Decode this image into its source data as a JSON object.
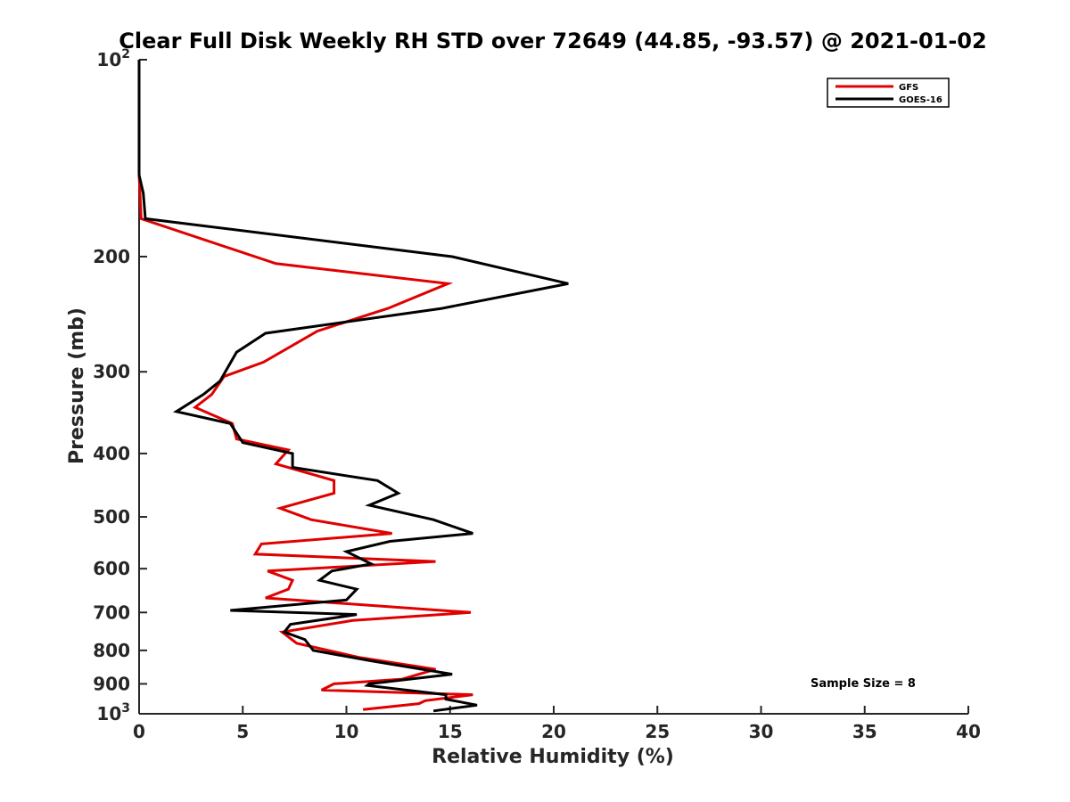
{
  "chart_data": {
    "type": "line",
    "title": "Clear Full Disk Weekly RH STD over 72649 (44.85, -93.57) @ 2021-01-02",
    "xlabel": "Relative Humidity (%)",
    "ylabel": "Pressure (mb)",
    "xlim": [
      0,
      40
    ],
    "ylim": [
      100,
      1000
    ],
    "y_scale": "log",
    "y_reversed": true,
    "grid": false,
    "legend_position": "top-right",
    "x_ticks": [
      {
        "value": 0,
        "label": "0"
      },
      {
        "value": 5,
        "label": "5"
      },
      {
        "value": 10,
        "label": "10"
      },
      {
        "value": 15,
        "label": "15"
      },
      {
        "value": 20,
        "label": "20"
      },
      {
        "value": 25,
        "label": "25"
      },
      {
        "value": 30,
        "label": "30"
      },
      {
        "value": 35,
        "label": "35"
      },
      {
        "value": 40,
        "label": "40"
      }
    ],
    "y_ticks": [
      {
        "value": 100,
        "base": "10",
        "exp": "2"
      },
      {
        "value": 200,
        "label": "200"
      },
      {
        "value": 300,
        "label": "300"
      },
      {
        "value": 400,
        "label": "400"
      },
      {
        "value": 500,
        "label": "500"
      },
      {
        "value": 600,
        "label": "600"
      },
      {
        "value": 700,
        "label": "700"
      },
      {
        "value": 800,
        "label": "800"
      },
      {
        "value": 900,
        "label": "900"
      },
      {
        "value": 1000,
        "base": "10",
        "exp": "3"
      }
    ],
    "series": [
      {
        "name": "GFS",
        "color": "#e00000",
        "points": [
          {
            "p": 100,
            "rh": 0.0
          },
          {
            "p": 150,
            "rh": 0.0
          },
          {
            "p": 175,
            "rh": 0.1
          },
          {
            "p": 205,
            "rh": 6.6
          },
          {
            "p": 220,
            "rh": 14.9
          },
          {
            "p": 240,
            "rh": 12.0
          },
          {
            "p": 260,
            "rh": 8.6
          },
          {
            "p": 290,
            "rh": 6.0
          },
          {
            "p": 305,
            "rh": 4.1
          },
          {
            "p": 325,
            "rh": 3.5
          },
          {
            "p": 340,
            "rh": 2.7
          },
          {
            "p": 360,
            "rh": 4.5
          },
          {
            "p": 380,
            "rh": 4.7
          },
          {
            "p": 395,
            "rh": 7.2
          },
          {
            "p": 415,
            "rh": 6.6
          },
          {
            "p": 440,
            "rh": 9.4
          },
          {
            "p": 460,
            "rh": 9.4
          },
          {
            "p": 485,
            "rh": 6.8
          },
          {
            "p": 505,
            "rh": 8.3
          },
          {
            "p": 530,
            "rh": 12.2
          },
          {
            "p": 550,
            "rh": 5.9
          },
          {
            "p": 570,
            "rh": 5.6
          },
          {
            "p": 585,
            "rh": 14.3
          },
          {
            "p": 605,
            "rh": 6.2
          },
          {
            "p": 625,
            "rh": 7.4
          },
          {
            "p": 645,
            "rh": 7.2
          },
          {
            "p": 665,
            "rh": 6.1
          },
          {
            "p": 700,
            "rh": 16.0
          },
          {
            "p": 720,
            "rh": 10.3
          },
          {
            "p": 750,
            "rh": 6.9
          },
          {
            "p": 780,
            "rh": 7.6
          },
          {
            "p": 820,
            "rh": 10.6
          },
          {
            "p": 855,
            "rh": 14.3
          },
          {
            "p": 885,
            "rh": 12.7
          },
          {
            "p": 900,
            "rh": 9.4
          },
          {
            "p": 920,
            "rh": 8.8
          },
          {
            "p": 935,
            "rh": 16.1
          },
          {
            "p": 955,
            "rh": 13.8
          },
          {
            "p": 965,
            "rh": 13.5
          },
          {
            "p": 985,
            "rh": 10.8
          }
        ]
      },
      {
        "name": "GOES-16",
        "color": "#000000",
        "points": [
          {
            "p": 100,
            "rh": 0.0
          },
          {
            "p": 150,
            "rh": 0.0
          },
          {
            "p": 160,
            "rh": 0.2
          },
          {
            "p": 175,
            "rh": 0.3
          },
          {
            "p": 200,
            "rh": 15.1
          },
          {
            "p": 220,
            "rh": 20.7
          },
          {
            "p": 240,
            "rh": 14.6
          },
          {
            "p": 262,
            "rh": 6.1
          },
          {
            "p": 280,
            "rh": 4.7
          },
          {
            "p": 310,
            "rh": 3.9
          },
          {
            "p": 325,
            "rh": 3.1
          },
          {
            "p": 345,
            "rh": 1.8
          },
          {
            "p": 360,
            "rh": 4.4
          },
          {
            "p": 385,
            "rh": 5.0
          },
          {
            "p": 400,
            "rh": 7.4
          },
          {
            "p": 420,
            "rh": 7.4
          },
          {
            "p": 440,
            "rh": 11.5
          },
          {
            "p": 460,
            "rh": 12.5
          },
          {
            "p": 480,
            "rh": 11.1
          },
          {
            "p": 505,
            "rh": 14.2
          },
          {
            "p": 530,
            "rh": 16.1
          },
          {
            "p": 545,
            "rh": 12.1
          },
          {
            "p": 565,
            "rh": 10.0
          },
          {
            "p": 590,
            "rh": 11.2
          },
          {
            "p": 605,
            "rh": 9.3
          },
          {
            "p": 625,
            "rh": 8.7
          },
          {
            "p": 645,
            "rh": 10.5
          },
          {
            "p": 670,
            "rh": 10.0
          },
          {
            "p": 695,
            "rh": 4.4
          },
          {
            "p": 705,
            "rh": 10.5
          },
          {
            "p": 730,
            "rh": 7.3
          },
          {
            "p": 750,
            "rh": 7.0
          },
          {
            "p": 770,
            "rh": 8.0
          },
          {
            "p": 800,
            "rh": 8.4
          },
          {
            "p": 830,
            "rh": 11.2
          },
          {
            "p": 870,
            "rh": 15.1
          },
          {
            "p": 900,
            "rh": 11.1
          },
          {
            "p": 905,
            "rh": 11.0
          },
          {
            "p": 935,
            "rh": 14.8
          },
          {
            "p": 950,
            "rh": 14.8
          },
          {
            "p": 970,
            "rh": 16.3
          },
          {
            "p": 990,
            "rh": 14.2
          }
        ]
      }
    ],
    "annotations": [
      {
        "text": "Sample Size = 8"
      }
    ]
  }
}
